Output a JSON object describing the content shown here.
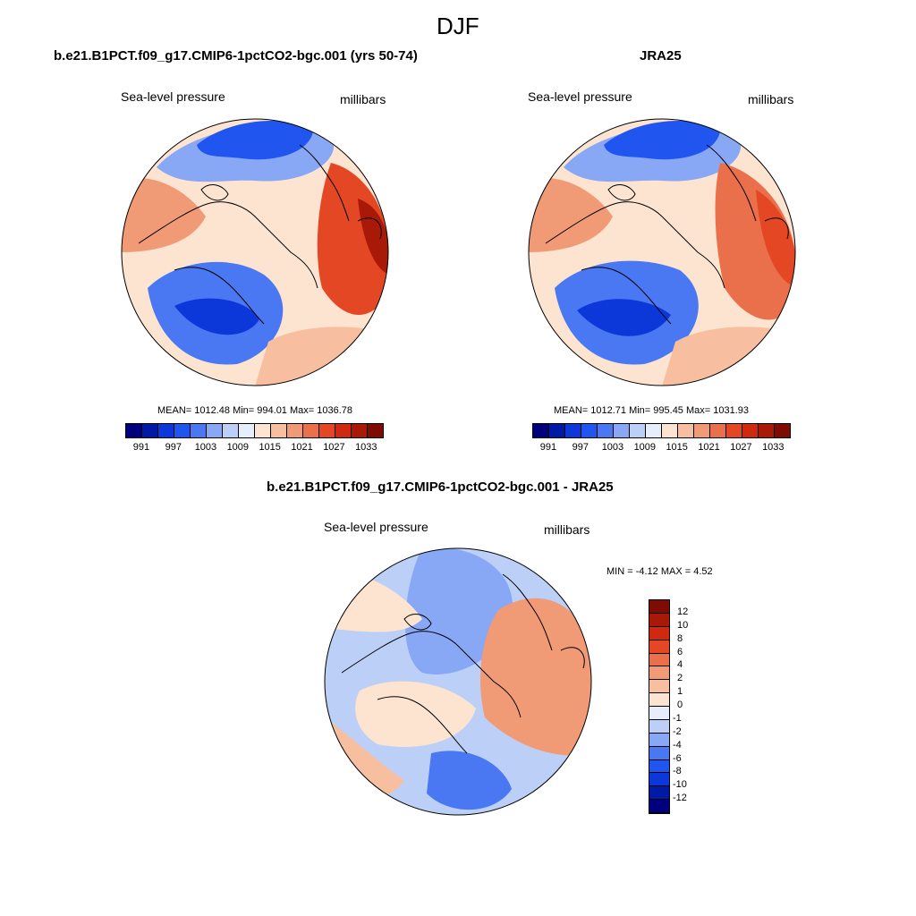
{
  "figure_title": "DJF",
  "palette": {
    "sequential": [
      "#00007f",
      "#001aa6",
      "#0d38d9",
      "#2055f0",
      "#4a78f2",
      "#88a8f5",
      "#bcd0f7",
      "#e6eefb",
      "#fde4d0",
      "#f7bf9f",
      "#f19a76",
      "#ea704b",
      "#e34724",
      "#d02a0e",
      "#a81a07",
      "#7f0c03"
    ],
    "diff": [
      "#00007f",
      "#001aa6",
      "#0d38d9",
      "#2055f0",
      "#4a78f2",
      "#88a8f5",
      "#bcd0f7",
      "#e6eefb",
      "#fde4d0",
      "#f7bf9f",
      "#f19a76",
      "#ea704b",
      "#e34724",
      "#d02a0e",
      "#a81a07",
      "#7f0c03"
    ],
    "coast": "#000000"
  },
  "panels": [
    {
      "title": "b.e21.B1PCT.f09_g17.CMIP6-1pctCO2-bgc.001 (yrs 50-74)",
      "left_label": "Sea-level pressure",
      "right_label": "millibars",
      "stats": "MEAN= 1012.48  Min= 994.01  Max= 1036.78",
      "colorbar_ticks": [
        "991",
        "997",
        "1003",
        "1009",
        "1015",
        "1021",
        "1027",
        "1033"
      ]
    },
    {
      "title": "JRA25",
      "left_label": "Sea-level pressure",
      "right_label": "millibars",
      "stats": "MEAN= 1012.71  Min= 995.45  Max= 1031.93",
      "colorbar_ticks": [
        "991",
        "997",
        "1003",
        "1009",
        "1015",
        "1021",
        "1027",
        "1033"
      ]
    },
    {
      "title": "b.e21.B1PCT.f09_g17.CMIP6-1pctCO2-bgc.001 - JRA25",
      "left_label": "Sea-level pressure",
      "right_label": "millibars",
      "stats": "MIN =  -4.12 MAX =   4.52",
      "colorbar_ticks": [
        "12",
        "10",
        "8",
        "6",
        "4",
        "2",
        "1",
        "0",
        "-1",
        "-2",
        "-4",
        "-6",
        "-8",
        "-10",
        "-12"
      ]
    }
  ]
}
